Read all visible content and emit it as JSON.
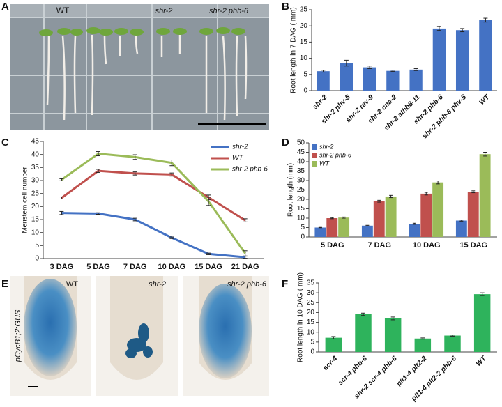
{
  "photo_panels": [
    {
      "panel": "A",
      "labels": [
        "WT",
        "shr-2",
        "shr-2 phb-6"
      ]
    },
    {
      "panel": "E",
      "labels": [
        "WT",
        "shr-2",
        "shr-2 phb-6"
      ],
      "ylabel": "pCycB1;2:GUS"
    }
  ],
  "chart_data": [
    {
      "type": "bar",
      "panel": "B",
      "ylabel": "Root length in 7 DAG ( mm)",
      "categories": [
        "shr-2",
        "shr-2 phv-5",
        "shr-2 rev-9",
        "shr-2 cna-2",
        "shr-2 athb8-11",
        "shr-2 phb-6",
        "shr-2 phb-6 phv-5",
        "WT"
      ],
      "values": [
        6,
        8.5,
        7.2,
        6.1,
        6.5,
        19.2,
        18.7,
        21.8
      ],
      "errors": [
        0.3,
        0.9,
        0.4,
        0.2,
        0.3,
        0.6,
        0.5,
        0.6
      ],
      "color": "#4472c4",
      "ylim": [
        0,
        25
      ],
      "yticks": [
        0,
        5,
        10,
        15,
        20,
        25
      ]
    },
    {
      "type": "line",
      "panel": "C",
      "ylabel": "Meristem cell number",
      "categories": [
        "3 DAG",
        "5 DAG",
        "7 DAG",
        "10 DAG",
        "15 DAG",
        "21 DAG"
      ],
      "series": [
        {
          "name": "shr-2",
          "color": "#4472c4",
          "values": [
            17.5,
            17.3,
            15,
            8,
            1.8,
            0.5
          ],
          "errors": [
            0.6,
            0.3,
            0.5,
            0.3,
            0.3,
            0.4
          ]
        },
        {
          "name": "WT",
          "color": "#c0504d",
          "values": [
            23.3,
            33.7,
            32.7,
            32.3,
            23.5,
            14.7
          ],
          "errors": [
            0.4,
            0.6,
            0.6,
            0.6,
            0.9,
            0.6
          ]
        },
        {
          "name": "shr-2 phb-6",
          "color": "#9bbb59",
          "values": [
            30.3,
            40.3,
            39,
            36.8,
            22,
            2
          ],
          "errors": [
            0.4,
            0.8,
            0.9,
            1.1,
            1.6,
            1
          ]
        }
      ],
      "ylim": [
        0,
        45
      ],
      "yticks": [
        0,
        5,
        10,
        15,
        20,
        25,
        30,
        35,
        40,
        45
      ],
      "legend": "top-right"
    },
    {
      "type": "grouped-bar",
      "panel": "D",
      "ylabel": "Root length (mm)",
      "categories": [
        "5 DAG",
        "7 DAG",
        "10 DAG",
        "15 DAG"
      ],
      "series": [
        {
          "name": "shr-2",
          "color": "#4472c4",
          "values": [
            5,
            6,
            7,
            8.7
          ],
          "errors": [
            0.1,
            0.2,
            0.3,
            0.3
          ]
        },
        {
          "name": "shr-2 phb-6",
          "color": "#c0504d",
          "values": [
            10,
            19,
            23,
            24
          ],
          "errors": [
            0.3,
            0.5,
            0.7,
            0.5
          ]
        },
        {
          "name": "WT",
          "color": "#9bbb59",
          "values": [
            10.3,
            21.5,
            29,
            44
          ],
          "errors": [
            0.3,
            0.6,
            0.8,
            1
          ]
        }
      ],
      "ylim": [
        0,
        50
      ],
      "yticks": [
        0,
        5,
        10,
        15,
        20,
        25,
        30,
        35,
        40,
        45,
        50
      ],
      "legend": "top-left"
    },
    {
      "type": "bar",
      "panel": "F",
      "ylabel": "Root length in 10 DAG ( mm)",
      "categories": [
        "scr-4",
        "scr-4 phb-6",
        "shr-2 scr-4 phb-6",
        "plt1-4 plt2-2",
        "plt1-4 plt2-2 phb-6",
        "WT"
      ],
      "values": [
        7.2,
        19.1,
        17,
        6.8,
        8.3,
        29.3
      ],
      "errors": [
        0.6,
        0.6,
        0.7,
        0.3,
        0.3,
        0.7
      ],
      "color": "#2eb35c",
      "ylim": [
        0,
        35
      ],
      "yticks": [
        0,
        5,
        10,
        15,
        20,
        25,
        30,
        35
      ]
    }
  ]
}
